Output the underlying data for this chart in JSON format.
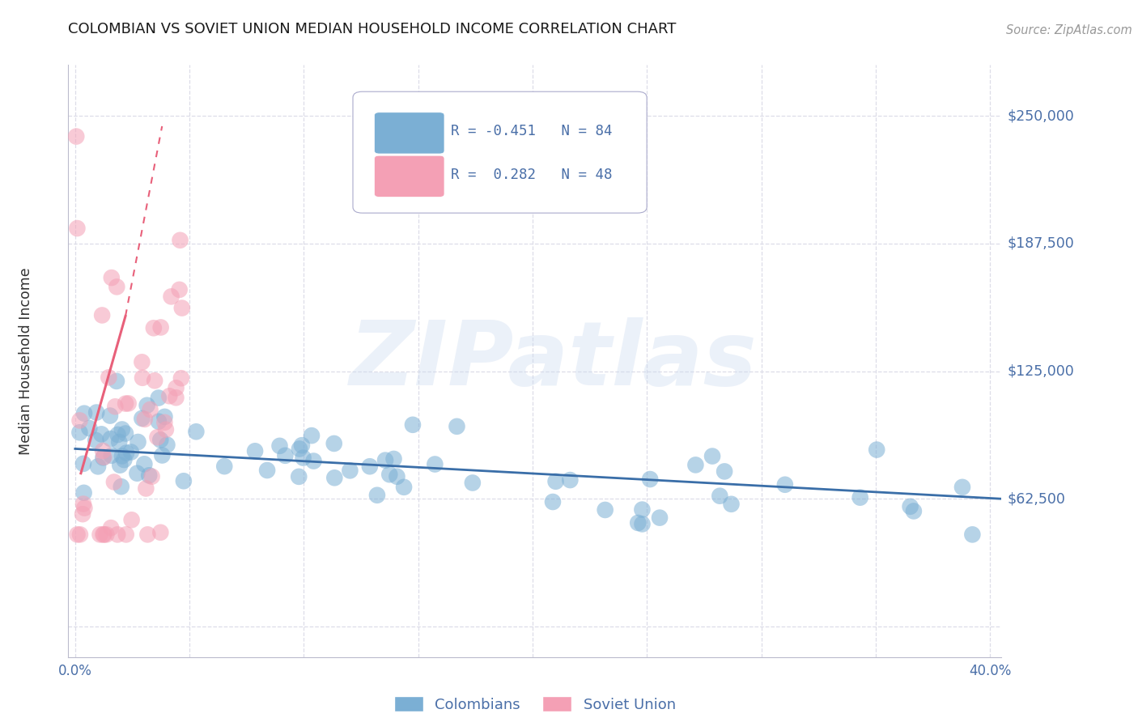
{
  "title": "COLOMBIAN VS SOVIET UNION MEDIAN HOUSEHOLD INCOME CORRELATION CHART",
  "source": "Source: ZipAtlas.com",
  "ylabel": "Median Household Income",
  "watermark": "ZIPatlas",
  "blue_color": "#7BAFD4",
  "pink_color": "#F4A0B5",
  "blue_line_color": "#3A6EA8",
  "pink_line_color": "#E8607A",
  "legend_R_blue": "-0.451",
  "legend_N_blue": "84",
  "legend_R_pink": "0.282",
  "legend_N_pink": "48",
  "grid_color": "#DDDDE8",
  "axis_label_color": "#4A6FA8",
  "ytick_vals": [
    0,
    62500,
    125000,
    187500,
    250000
  ],
  "ytick_labels": [
    "",
    "$62,500",
    "$125,000",
    "$187,500",
    "$250,000"
  ],
  "ylim": [
    -15000,
    275000
  ],
  "xlim": [
    -0.003,
    0.405
  ]
}
